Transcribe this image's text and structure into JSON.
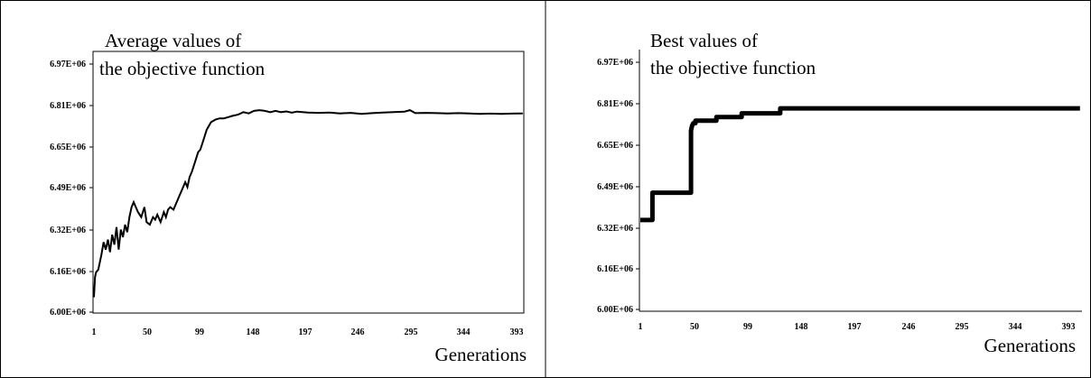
{
  "chart_data": [
    {
      "type": "line",
      "title_line1": "Average values of",
      "title_line2": "the objective function",
      "xlabel": "Generations",
      "x_ticks": [
        "1",
        "50",
        "99",
        "148",
        "197",
        "246",
        "295",
        "344",
        "393"
      ],
      "y_ticks": [
        "6.00E+06",
        "6.16E+06",
        "6.32E+06",
        "6.49E+06",
        "6.65E+06",
        "6.81E+06",
        "6.97E+06"
      ],
      "xlim": [
        1,
        401
      ],
      "ylim": [
        6000000,
        7050000
      ],
      "grid": false,
      "series": [
        {
          "x": [
            1,
            2,
            3,
            5,
            8,
            10,
            12,
            14,
            16,
            18,
            20,
            22,
            24,
            26,
            28,
            30,
            32,
            34,
            36,
            38,
            40,
            42,
            45,
            48,
            50,
            53,
            56,
            58,
            60,
            63,
            66,
            68,
            70,
            72,
            75,
            78,
            80,
            83,
            86,
            88,
            90,
            92,
            95,
            98,
            100,
            103,
            106,
            110,
            114,
            118,
            122,
            126,
            130,
            135,
            140,
            145,
            150,
            155,
            160,
            165,
            170,
            175,
            180,
            185,
            190,
            195,
            200,
            210,
            220,
            230,
            240,
            250,
            260,
            270,
            280,
            290,
            295,
            300,
            310,
            320,
            330,
            340,
            350,
            360,
            370,
            380,
            390,
            400
          ],
          "y": [
            6060000,
            6140000,
            6160000,
            6170000,
            6230000,
            6280000,
            6250000,
            6290000,
            6240000,
            6310000,
            6270000,
            6340000,
            6250000,
            6330000,
            6300000,
            6350000,
            6320000,
            6380000,
            6420000,
            6440000,
            6420000,
            6400000,
            6380000,
            6420000,
            6360000,
            6350000,
            6380000,
            6370000,
            6390000,
            6360000,
            6400000,
            6380000,
            6410000,
            6420000,
            6410000,
            6440000,
            6460000,
            6490000,
            6520000,
            6500000,
            6540000,
            6560000,
            6600000,
            6640000,
            6650000,
            6690000,
            6730000,
            6760000,
            6770000,
            6775000,
            6775000,
            6780000,
            6785000,
            6790000,
            6800000,
            6795000,
            6805000,
            6808000,
            6805000,
            6800000,
            6805000,
            6800000,
            6803000,
            6798000,
            6802000,
            6800000,
            6798000,
            6797000,
            6798000,
            6795000,
            6797000,
            6793000,
            6796000,
            6798000,
            6800000,
            6802000,
            6808000,
            6796000,
            6797000,
            6796000,
            6795000,
            6796000,
            6795000,
            6793000,
            6794000,
            6793000,
            6794000,
            6795000
          ]
        }
      ]
    },
    {
      "type": "line",
      "title_line1": "Best values of",
      "title_line2": "the objective function",
      "xlabel": "Generations",
      "x_ticks": [
        "1",
        "50",
        "99",
        "148",
        "197",
        "246",
        "295",
        "344",
        "393"
      ],
      "y_ticks": [
        "6.00E+06",
        "6.16E+06",
        "6.32E+06",
        "6.49E+06",
        "6.65E+06",
        "6.81E+06",
        "6.97E+06"
      ],
      "xlim": [
        1,
        401
      ],
      "ylim": [
        6000000,
        7050000
      ],
      "grid": false,
      "series": [
        {
          "x": [
            1,
            12,
            12,
            47,
            47,
            48,
            49,
            50,
            51,
            51,
            70,
            70,
            93,
            93,
            128,
            128,
            400
          ],
          "y": [
            6360000,
            6360000,
            6470000,
            6470000,
            6720000,
            6740000,
            6750000,
            6750000,
            6750000,
            6760000,
            6760000,
            6775000,
            6775000,
            6790000,
            6790000,
            6810000,
            6810000
          ]
        }
      ]
    }
  ]
}
